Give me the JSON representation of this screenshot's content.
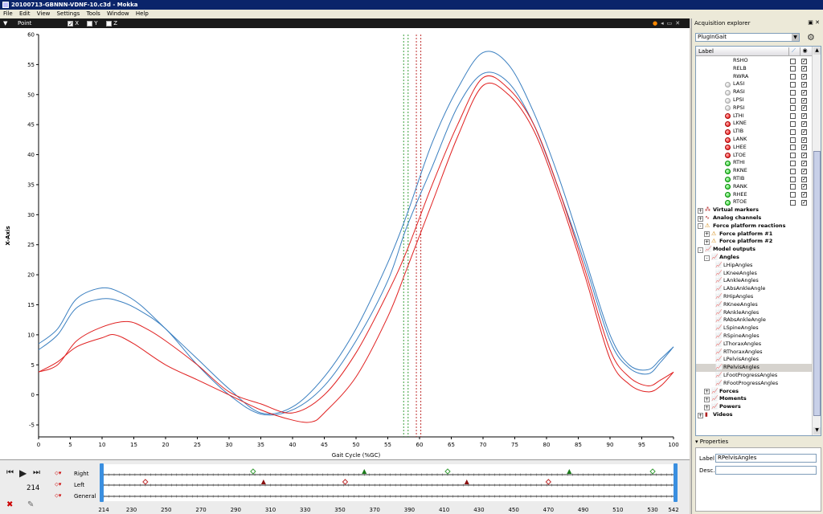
{
  "window": {
    "title": "20100713-GBNNN-VDNF-10.c3d - Mokka"
  },
  "menu": [
    "File",
    "Edit",
    "View",
    "Settings",
    "Tools",
    "Window",
    "Help"
  ],
  "plot_toolbar": {
    "type_label": "Point",
    "components": [
      {
        "label": "X",
        "checked": true
      },
      {
        "label": "Y",
        "checked": false
      },
      {
        "label": "Z",
        "checked": false
      }
    ]
  },
  "chart_data": {
    "type": "line",
    "xlabel": "Gait Cycle (%GC)",
    "ylabel": "X-Axis",
    "xlim": [
      0,
      100
    ],
    "ylim": [
      -7,
      60
    ],
    "xticks": [
      0,
      5,
      10,
      15,
      20,
      25,
      30,
      35,
      40,
      45,
      50,
      55,
      60,
      65,
      70,
      75,
      80,
      85,
      90,
      95,
      100
    ],
    "yticks": [
      -5,
      0,
      5,
      10,
      15,
      20,
      25,
      30,
      35,
      40,
      45,
      50,
      55,
      60
    ],
    "grid": false,
    "colors": {
      "left": "#e02020",
      "right": "#3a7fc0"
    },
    "series": [
      {
        "color": "right",
        "points": [
          [
            0,
            8.5
          ],
          [
            3,
            11
          ],
          [
            6,
            16
          ],
          [
            10,
            17.8
          ],
          [
            13,
            17
          ],
          [
            16,
            15
          ],
          [
            20,
            11
          ],
          [
            25,
            6
          ],
          [
            30,
            1
          ],
          [
            35,
            -3
          ],
          [
            40,
            -2
          ],
          [
            45,
            3
          ],
          [
            50,
            11
          ],
          [
            55,
            22
          ],
          [
            58,
            30
          ],
          [
            62,
            42
          ],
          [
            66,
            51
          ],
          [
            70,
            57
          ],
          [
            74,
            55
          ],
          [
            78,
            47
          ],
          [
            82,
            36
          ],
          [
            86,
            23
          ],
          [
            90,
            10
          ],
          [
            93,
            5
          ],
          [
            96,
            4.2
          ],
          [
            98,
            6
          ],
          [
            100,
            8
          ]
        ]
      },
      {
        "color": "right",
        "points": [
          [
            0,
            7.5
          ],
          [
            3,
            10
          ],
          [
            6,
            14.5
          ],
          [
            10,
            16
          ],
          [
            13,
            15.5
          ],
          [
            16,
            14
          ],
          [
            20,
            11
          ],
          [
            25,
            5
          ],
          [
            30,
            0
          ],
          [
            35,
            -3.2
          ],
          [
            40,
            -2.5
          ],
          [
            45,
            1.5
          ],
          [
            50,
            9
          ],
          [
            55,
            19
          ],
          [
            58,
            28
          ],
          [
            62,
            38
          ],
          [
            66,
            48
          ],
          [
            70,
            53.5
          ],
          [
            74,
            52
          ],
          [
            78,
            45
          ],
          [
            82,
            34
          ],
          [
            86,
            22
          ],
          [
            90,
            9
          ],
          [
            93,
            4.5
          ],
          [
            96,
            3.5
          ],
          [
            98,
            5.5
          ],
          [
            100,
            8
          ]
        ]
      },
      {
        "color": "left",
        "points": [
          [
            0,
            3.8
          ],
          [
            3,
            5
          ],
          [
            6,
            9
          ],
          [
            10,
            11.3
          ],
          [
            14,
            12.2
          ],
          [
            17,
            11
          ],
          [
            20,
            9
          ],
          [
            25,
            5
          ],
          [
            30,
            0.5
          ],
          [
            35,
            -1.5
          ],
          [
            40,
            -3
          ],
          [
            45,
            0
          ],
          [
            50,
            7
          ],
          [
            55,
            17
          ],
          [
            58,
            24
          ],
          [
            62,
            35
          ],
          [
            66,
            45
          ],
          [
            70,
            52.8
          ],
          [
            74,
            51
          ],
          [
            78,
            45
          ],
          [
            82,
            34
          ],
          [
            86,
            21
          ],
          [
            90,
            7.5
          ],
          [
            93,
            3
          ],
          [
            96,
            1.5
          ],
          [
            98,
            2.5
          ],
          [
            100,
            3.8
          ]
        ]
      },
      {
        "color": "left",
        "points": [
          [
            0,
            3.8
          ],
          [
            3,
            5.5
          ],
          [
            6,
            8
          ],
          [
            10,
            9.5
          ],
          [
            12,
            10
          ],
          [
            15,
            8.5
          ],
          [
            20,
            5
          ],
          [
            25,
            2.5
          ],
          [
            30,
            0
          ],
          [
            35,
            -2.5
          ],
          [
            40,
            -4.2
          ],
          [
            43,
            -4.5
          ],
          [
            45,
            -3
          ],
          [
            50,
            3
          ],
          [
            55,
            13
          ],
          [
            58,
            21
          ],
          [
            62,
            32
          ],
          [
            66,
            43
          ],
          [
            70,
            51.5
          ],
          [
            74,
            50
          ],
          [
            78,
            44
          ],
          [
            82,
            33
          ],
          [
            86,
            20
          ],
          [
            90,
            6
          ],
          [
            93,
            1.8
          ],
          [
            96,
            0.5
          ],
          [
            98,
            1.5
          ],
          [
            100,
            3.8
          ]
        ]
      }
    ],
    "event_lines": [
      {
        "x": 57.5,
        "color": "#3a9f3a"
      },
      {
        "x": 58.2,
        "color": "#3a9f3a"
      },
      {
        "x": 59.5,
        "color": "#c03030"
      },
      {
        "x": 60.2,
        "color": "#c03030"
      }
    ]
  },
  "timeline": {
    "frame": "214",
    "tracks": [
      "Right",
      "Left",
      "General"
    ],
    "frame_ticks": [
      "214",
      "230",
      "250",
      "270",
      "290",
      "310",
      "330",
      "350",
      "370",
      "390",
      "410",
      "430",
      "450",
      "470",
      "490",
      "510",
      "530",
      "542"
    ],
    "range": [
      214,
      542
    ],
    "events": {
      "Right": [
        {
          "frame": 300,
          "shape": "diamond",
          "color": "#3a9f3a"
        },
        {
          "frame": 364,
          "shape": "triangle",
          "color": "#1a7a1a"
        },
        {
          "frame": 412,
          "shape": "diamond",
          "color": "#3a9f3a"
        },
        {
          "frame": 482,
          "shape": "triangle",
          "color": "#1a7a1a"
        },
        {
          "frame": 530,
          "shape": "diamond",
          "color": "#3a9f3a"
        }
      ],
      "Left": [
        {
          "frame": 238,
          "shape": "diamond",
          "color": "#c03030"
        },
        {
          "frame": 306,
          "shape": "triangle",
          "color": "#8a1010"
        },
        {
          "frame": 353,
          "shape": "diamond",
          "color": "#c03030"
        },
        {
          "frame": 423,
          "shape": "triangle",
          "color": "#8a1010"
        },
        {
          "frame": 470,
          "shape": "diamond",
          "color": "#c03030"
        }
      ]
    }
  },
  "explorer": {
    "title": "Acquisition explorer",
    "combo": "PlugInGait",
    "header_label": "Label",
    "rows": [
      {
        "label": "RSHO",
        "indent": 25,
        "dot": "",
        "c1": false,
        "c2": true
      },
      {
        "label": "RELB",
        "indent": 25,
        "dot": "",
        "c1": false,
        "c2": true
      },
      {
        "label": "RWRA",
        "indent": 25,
        "dot": "",
        "c1": false,
        "c2": true
      },
      {
        "label": "LASI",
        "indent": 25,
        "dot": "gray",
        "c1": false,
        "c2": true
      },
      {
        "label": "RASI",
        "indent": 25,
        "dot": "gray",
        "c1": false,
        "c2": true
      },
      {
        "label": "LPSI",
        "indent": 25,
        "dot": "gray",
        "c1": false,
        "c2": true
      },
      {
        "label": "RPSI",
        "indent": 25,
        "dot": "gray",
        "c1": false,
        "c2": true
      },
      {
        "label": "LTHI",
        "indent": 25,
        "dot": "red",
        "c1": false,
        "c2": true
      },
      {
        "label": "LKNE",
        "indent": 25,
        "dot": "red",
        "c1": false,
        "c2": true
      },
      {
        "label": "LTIB",
        "indent": 25,
        "dot": "red",
        "c1": false,
        "c2": true
      },
      {
        "label": "LANK",
        "indent": 25,
        "dot": "red",
        "c1": false,
        "c2": true
      },
      {
        "label": "LHEE",
        "indent": 25,
        "dot": "red",
        "c1": false,
        "c2": true
      },
      {
        "label": "LTOE",
        "indent": 25,
        "dot": "red",
        "c1": false,
        "c2": true
      },
      {
        "label": "RTHI",
        "indent": 25,
        "dot": "green",
        "c1": false,
        "c2": true
      },
      {
        "label": "RKNE",
        "indent": 25,
        "dot": "green",
        "c1": false,
        "c2": true
      },
      {
        "label": "RTIB",
        "indent": 25,
        "dot": "green",
        "c1": false,
        "c2": true
      },
      {
        "label": "RANK",
        "indent": 25,
        "dot": "green",
        "c1": false,
        "c2": true
      },
      {
        "label": "RHEE",
        "indent": 25,
        "dot": "green",
        "c1": false,
        "c2": true
      },
      {
        "label": "RTOE",
        "indent": 25,
        "dot": "green",
        "c1": false,
        "c2": true
      },
      {
        "label": "Virtual markers",
        "indent": 0,
        "group": "+",
        "icon": "markers",
        "bold": true
      },
      {
        "label": "Analog channels",
        "indent": 0,
        "group": "+",
        "icon": "analog",
        "bold": true
      },
      {
        "label": "Force platform reactions",
        "indent": 0,
        "group": "-",
        "icon": "warning",
        "bold": true
      },
      {
        "label": "Force platform #1",
        "indent": 8,
        "group": "+",
        "icon": "warning",
        "bold": true
      },
      {
        "label": "Force platform #2",
        "indent": 8,
        "group": "+",
        "icon": "warning",
        "bold": true
      },
      {
        "label": "Model outputs",
        "indent": 0,
        "group": "-",
        "icon": "chart",
        "bold": true
      },
      {
        "label": "Angles",
        "indent": 8,
        "group": "-",
        "icon": "chart",
        "bold": true
      },
      {
        "label": "LHipAngles",
        "indent": 22,
        "icon": "chart"
      },
      {
        "label": "LKneeAngles",
        "indent": 22,
        "icon": "chart"
      },
      {
        "label": "LAnkleAngles",
        "indent": 22,
        "icon": "chart"
      },
      {
        "label": "LAbsAnkleAngle",
        "indent": 22,
        "icon": "chart"
      },
      {
        "label": "RHipAngles",
        "indent": 22,
        "icon": "chart"
      },
      {
        "label": "RKneeAngles",
        "indent": 22,
        "icon": "chart"
      },
      {
        "label": "RAnkleAngles",
        "indent": 22,
        "icon": "chart"
      },
      {
        "label": "RAbsAnkleAngle",
        "indent": 22,
        "icon": "chart"
      },
      {
        "label": "LSpineAngles",
        "indent": 22,
        "icon": "chart"
      },
      {
        "label": "RSpineAngles",
        "indent": 22,
        "icon": "chart"
      },
      {
        "label": "LThoraxAngles",
        "indent": 22,
        "icon": "chart"
      },
      {
        "label": "RThoraxAngles",
        "indent": 22,
        "icon": "chart"
      },
      {
        "label": "LPelvisAngles",
        "indent": 22,
        "icon": "chart"
      },
      {
        "label": "RPelvisAngles",
        "indent": 22,
        "icon": "chart",
        "selected": true
      },
      {
        "label": "LFootProgressAngles",
        "indent": 22,
        "icon": "chart"
      },
      {
        "label": "RFootProgressAngles",
        "indent": 22,
        "icon": "chart"
      },
      {
        "label": "Forces",
        "indent": 8,
        "group": "+",
        "icon": "chart",
        "bold": true
      },
      {
        "label": "Moments",
        "indent": 8,
        "group": "+",
        "icon": "chart",
        "bold": true
      },
      {
        "label": "Powers",
        "indent": 8,
        "group": "+",
        "icon": "chart",
        "bold": true
      },
      {
        "label": "Videos",
        "indent": 0,
        "group": "+",
        "icon": "video",
        "bold": true
      }
    ]
  },
  "properties": {
    "title": "Properties",
    "label_caption": "Label",
    "label_value": "RPelvisAngles",
    "desc_caption": "Desc.",
    "desc_value": ""
  }
}
